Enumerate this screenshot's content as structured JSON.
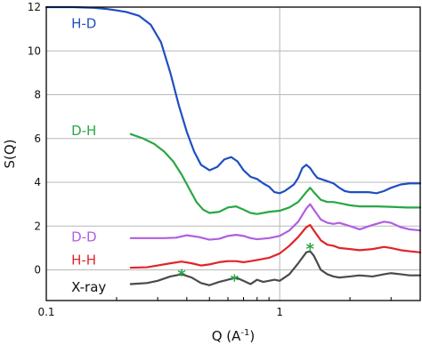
{
  "chart_data": {
    "type": "line",
    "xlabel_main": "Q (",
    "xlabel_unit": "A",
    "xlabel_exp": "-1",
    "xlabel_close": ")",
    "ylabel": "S(Q)",
    "xscale": "log",
    "xlim": [
      0.1,
      4.0
    ],
    "ylim": [
      -1.4,
      12
    ],
    "xticks": [
      0.1,
      1
    ],
    "xtick_labels": [
      "0.1",
      "1"
    ],
    "yticks": [
      0,
      2,
      4,
      6,
      8,
      10,
      12
    ],
    "ytick_labels": [
      "0",
      "2",
      "4",
      "6",
      "8",
      "10",
      "12"
    ],
    "grid": true,
    "series": [
      {
        "name": "H-D",
        "color": "#1f4fc0",
        "x": [
          0.1,
          0.13,
          0.16,
          0.18,
          0.2,
          0.22,
          0.25,
          0.28,
          0.31,
          0.34,
          0.37,
          0.4,
          0.43,
          0.46,
          0.5,
          0.54,
          0.58,
          0.62,
          0.66,
          0.7,
          0.75,
          0.8,
          0.85,
          0.9,
          0.95,
          1.0,
          1.05,
          1.1,
          1.15,
          1.2,
          1.25,
          1.3,
          1.35,
          1.4,
          1.45,
          1.5,
          1.6,
          1.7,
          1.8,
          1.9,
          2.0,
          2.2,
          2.4,
          2.6,
          2.8,
          3.0,
          3.3,
          3.6,
          4.0
        ],
        "y": [
          12.0,
          12.0,
          11.97,
          11.92,
          11.85,
          11.78,
          11.6,
          11.2,
          10.4,
          9.0,
          7.5,
          6.3,
          5.4,
          4.8,
          4.55,
          4.7,
          5.05,
          5.15,
          4.95,
          4.55,
          4.25,
          4.15,
          3.95,
          3.8,
          3.55,
          3.5,
          3.6,
          3.75,
          3.9,
          4.2,
          4.65,
          4.8,
          4.65,
          4.4,
          4.2,
          4.15,
          4.05,
          3.95,
          3.75,
          3.6,
          3.55,
          3.55,
          3.55,
          3.5,
          3.6,
          3.75,
          3.9,
          3.95,
          3.95
        ]
      },
      {
        "name": "D-H",
        "color": "#28a745",
        "x": [
          0.23,
          0.26,
          0.29,
          0.32,
          0.35,
          0.38,
          0.41,
          0.44,
          0.47,
          0.5,
          0.55,
          0.6,
          0.65,
          0.7,
          0.75,
          0.8,
          0.9,
          1.0,
          1.1,
          1.2,
          1.3,
          1.35,
          1.4,
          1.5,
          1.6,
          1.7,
          1.8,
          2.0,
          2.2,
          2.4,
          2.6,
          3.0,
          3.5,
          4.0
        ],
        "y": [
          6.2,
          6.0,
          5.75,
          5.4,
          4.95,
          4.35,
          3.7,
          3.1,
          2.75,
          2.6,
          2.65,
          2.85,
          2.9,
          2.75,
          2.6,
          2.55,
          2.65,
          2.7,
          2.85,
          3.1,
          3.55,
          3.75,
          3.55,
          3.2,
          3.1,
          3.1,
          3.05,
          2.95,
          2.9,
          2.9,
          2.9,
          2.88,
          2.85,
          2.85
        ]
      },
      {
        "name": "D-D",
        "color": "#b05ee0",
        "x": [
          0.23,
          0.28,
          0.32,
          0.36,
          0.4,
          0.45,
          0.5,
          0.55,
          0.6,
          0.65,
          0.7,
          0.75,
          0.8,
          0.9,
          1.0,
          1.1,
          1.2,
          1.3,
          1.35,
          1.4,
          1.5,
          1.6,
          1.7,
          1.8,
          2.0,
          2.2,
          2.5,
          2.8,
          3.0,
          3.3,
          3.6,
          4.0
        ],
        "y": [
          1.45,
          1.45,
          1.45,
          1.47,
          1.58,
          1.5,
          1.38,
          1.42,
          1.55,
          1.6,
          1.55,
          1.45,
          1.4,
          1.45,
          1.55,
          1.8,
          2.2,
          2.8,
          3.0,
          2.75,
          2.3,
          2.15,
          2.1,
          2.15,
          2.0,
          1.85,
          2.05,
          2.2,
          2.15,
          1.95,
          1.85,
          1.8
        ]
      },
      {
        "name": "H-H",
        "color": "#e0242a",
        "x": [
          0.23,
          0.27,
          0.3,
          0.34,
          0.38,
          0.42,
          0.46,
          0.5,
          0.55,
          0.6,
          0.65,
          0.7,
          0.75,
          0.8,
          0.9,
          1.0,
          1.1,
          1.2,
          1.3,
          1.35,
          1.4,
          1.5,
          1.6,
          1.7,
          1.8,
          2.0,
          2.2,
          2.5,
          2.8,
          3.0,
          3.3,
          3.6,
          4.0
        ],
        "y": [
          0.1,
          0.12,
          0.2,
          0.3,
          0.38,
          0.3,
          0.2,
          0.25,
          0.35,
          0.4,
          0.4,
          0.35,
          0.4,
          0.45,
          0.55,
          0.75,
          1.1,
          1.5,
          1.95,
          2.05,
          1.8,
          1.35,
          1.15,
          1.1,
          1.0,
          0.95,
          0.9,
          0.95,
          1.05,
          1.0,
          0.9,
          0.85,
          0.8
        ]
      },
      {
        "name": "X-ray",
        "color": "#4a4a4a",
        "x": [
          0.23,
          0.27,
          0.3,
          0.34,
          0.38,
          0.42,
          0.46,
          0.5,
          0.55,
          0.6,
          0.65,
          0.7,
          0.75,
          0.8,
          0.85,
          0.9,
          0.95,
          1.0,
          1.1,
          1.2,
          1.3,
          1.35,
          1.4,
          1.5,
          1.6,
          1.7,
          1.8,
          2.0,
          2.2,
          2.5,
          2.8,
          3.0,
          3.3,
          3.6,
          4.0
        ],
        "y": [
          -0.65,
          -0.6,
          -0.5,
          -0.3,
          -0.2,
          -0.35,
          -0.6,
          -0.7,
          -0.55,
          -0.45,
          -0.35,
          -0.5,
          -0.65,
          -0.45,
          -0.55,
          -0.5,
          -0.45,
          -0.5,
          -0.2,
          0.3,
          0.8,
          0.85,
          0.65,
          0.0,
          -0.2,
          -0.3,
          -0.35,
          -0.3,
          -0.25,
          -0.3,
          -0.2,
          -0.15,
          -0.2,
          -0.25,
          -0.25
        ]
      }
    ],
    "annotations": [
      {
        "text": "*",
        "color": "#28a745",
        "x": 0.38,
        "y": -0.2
      },
      {
        "text": "*",
        "color": "#28a745",
        "x": 0.64,
        "y": -0.45
      },
      {
        "text": "*",
        "color": "#28a745",
        "x": 1.35,
        "y": 1.0
      }
    ],
    "series_labels": [
      {
        "text": "H-D",
        "color": "#1f4fc0",
        "x": 0.128,
        "y": 11.25
      },
      {
        "text": "D-H",
        "color": "#28a745",
        "x": 0.128,
        "y": 6.35
      },
      {
        "text": "D-D",
        "color": "#b05ee0",
        "x": 0.128,
        "y": 1.5
      },
      {
        "text": "H-H",
        "color": "#e0242a",
        "x": 0.128,
        "y": 0.45
      },
      {
        "text": "X-ray",
        "color": "#111111",
        "x": 0.128,
        "y": -0.8
      }
    ]
  }
}
